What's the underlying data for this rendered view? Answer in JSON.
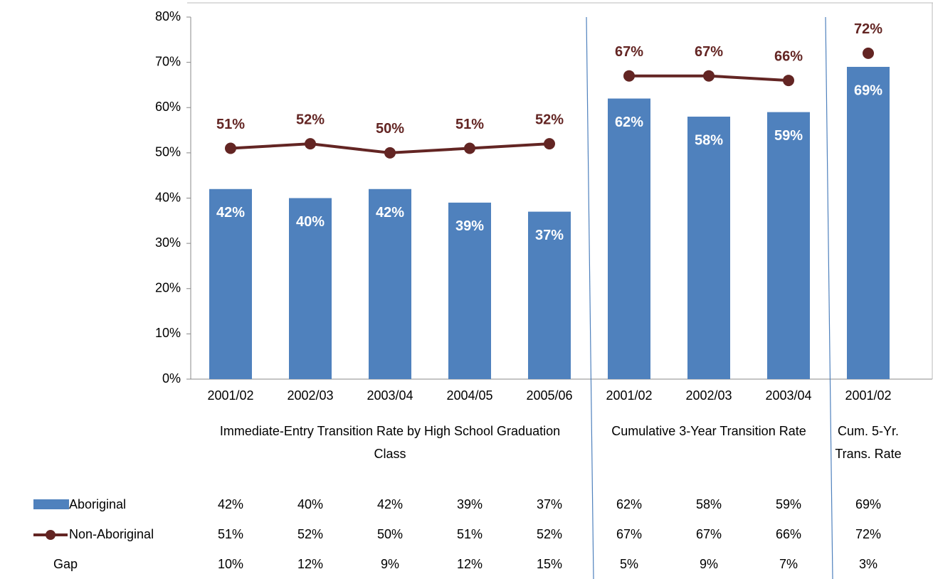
{
  "chart_data": {
    "type": "bar-line",
    "ylim": [
      0,
      80
    ],
    "yticks": [
      {
        "value": 0,
        "label": "0%"
      },
      {
        "value": 10,
        "label": "10%"
      },
      {
        "value": 20,
        "label": "20%"
      },
      {
        "value": 30,
        "label": "30%"
      },
      {
        "value": 40,
        "label": "40%"
      },
      {
        "value": 50,
        "label": "50%"
      },
      {
        "value": 60,
        "label": "60%"
      },
      {
        "value": 70,
        "label": "70%"
      },
      {
        "value": 80,
        "label": "80%"
      }
    ],
    "series": [
      {
        "name": "Aboriginal",
        "color": "#4f81bd",
        "type": "bar"
      },
      {
        "name": "Non-Aboriginal",
        "color": "#632523",
        "type": "line"
      },
      {
        "name": "Gap"
      }
    ],
    "groups": [
      {
        "label": "Immediate-Entry Transition Rate by High School Graduation Class",
        "categories": [
          "2001/02",
          "2002/03",
          "2003/04",
          "2004/05",
          "2005/06"
        ],
        "series": [
          {
            "values": [
              42,
              40,
              42,
              39,
              37
            ],
            "value_labels": [
              "42%",
              "40%",
              "42%",
              "39%",
              "37%"
            ]
          },
          {
            "values": [
              51,
              52,
              50,
              51,
              52
            ],
            "value_labels": [
              "51%",
              "52%",
              "50%",
              "51%",
              "52%"
            ]
          },
          {
            "values": [
              10,
              12,
              9,
              12,
              15
            ],
            "value_labels": [
              "10%",
              "12%",
              "9%",
              "12%",
              "15%"
            ]
          }
        ]
      },
      {
        "label": "Cumulative 3-Year Transition Rate",
        "categories": [
          "2001/02",
          "2002/03",
          "2003/04"
        ],
        "series": [
          {
            "values": [
              62,
              58,
              59
            ],
            "value_labels": [
              "62%",
              "58%",
              "59%"
            ]
          },
          {
            "values": [
              67,
              67,
              66
            ],
            "value_labels": [
              "67%",
              "67%",
              "66%"
            ]
          },
          {
            "values": [
              5,
              9,
              7
            ],
            "value_labels": [
              "5%",
              "9%",
              "7%"
            ]
          }
        ]
      },
      {
        "label": "Cum. 5-Yr. Trans. Rate",
        "categories": [
          "2001/02"
        ],
        "series": [
          {
            "values": [
              69
            ],
            "value_labels": [
              "69%"
            ]
          },
          {
            "values": [
              72
            ],
            "value_labels": [
              "72%"
            ]
          },
          {
            "values": [
              3
            ],
            "value_labels": [
              "3%"
            ]
          }
        ]
      }
    ]
  }
}
